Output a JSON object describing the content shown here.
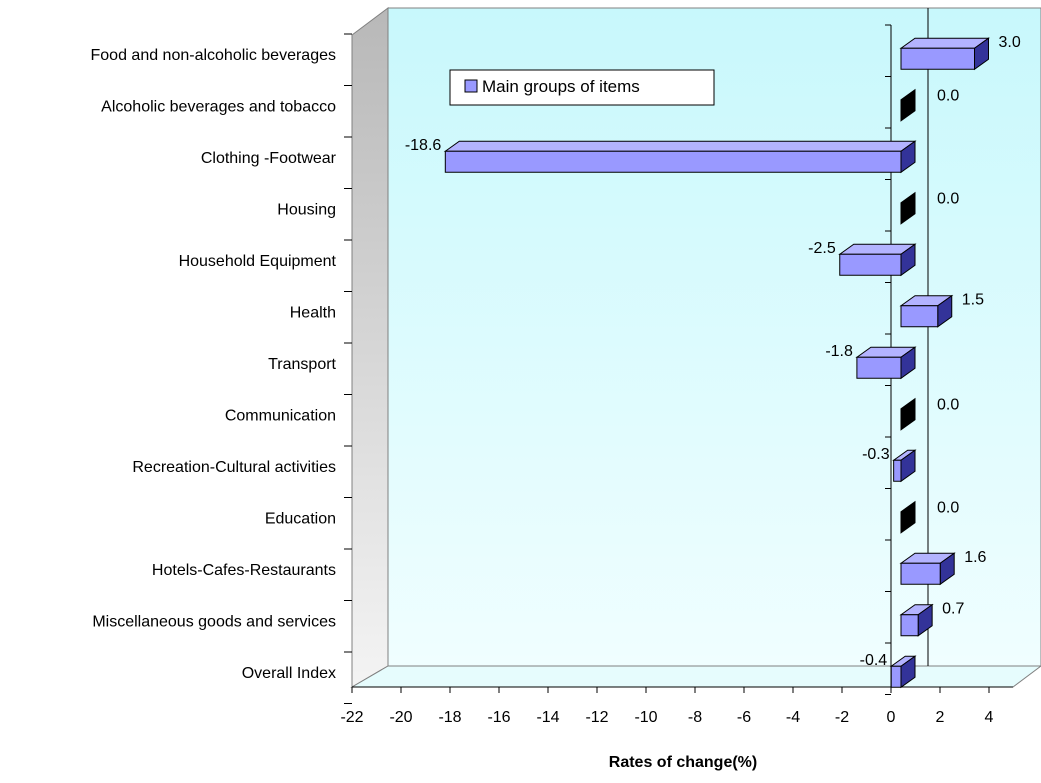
{
  "chart_data": {
    "type": "bar",
    "orientation": "horizontal",
    "three_d": true,
    "categories": [
      "Food and non-alcoholic beverages",
      "Alcoholic beverages and tobacco",
      "Clothing -Footwear",
      "Housing",
      "Household Equipment",
      "Health",
      "Transport",
      "Communication",
      "Recreation-Cultural activities",
      "Education",
      "Hotels-Cafes-Restaurants",
      "Miscellaneous goods and services",
      "Overall Index"
    ],
    "series": [
      {
        "name": "Main groups of items",
        "values": [
          3.0,
          0.0,
          -18.6,
          0.0,
          -2.5,
          1.5,
          -1.8,
          0.0,
          -0.3,
          0.0,
          1.6,
          0.7,
          -0.4
        ],
        "labels": [
          "3.0",
          "0.0",
          "-18.6",
          "0.0",
          "-2.5",
          "1.5",
          "-1.8",
          "0.0",
          "-0.3",
          "0.0",
          "1.6",
          "0.7",
          "-0.4"
        ]
      }
    ],
    "xlabel": "Rates of change(%)",
    "ylabel": "",
    "xlim": [
      -22,
      4
    ],
    "xticks": [
      "-22",
      "-20",
      "-18",
      "-16",
      "-14",
      "-12",
      "-10",
      "-8",
      "-6",
      "-4",
      "-2",
      "0",
      "2",
      "4"
    ],
    "legend_position": "top-left",
    "grid": false,
    "colors": {
      "bar_face": "#9999ff",
      "bar_top": "#b3b3ff",
      "bar_side": "#333399",
      "plot_bg_top": "#c8f8fc",
      "plot_bg_bottom": "#f0feff",
      "left_wall": "#b8b8b8",
      "floor": "#e6fcfd"
    }
  }
}
